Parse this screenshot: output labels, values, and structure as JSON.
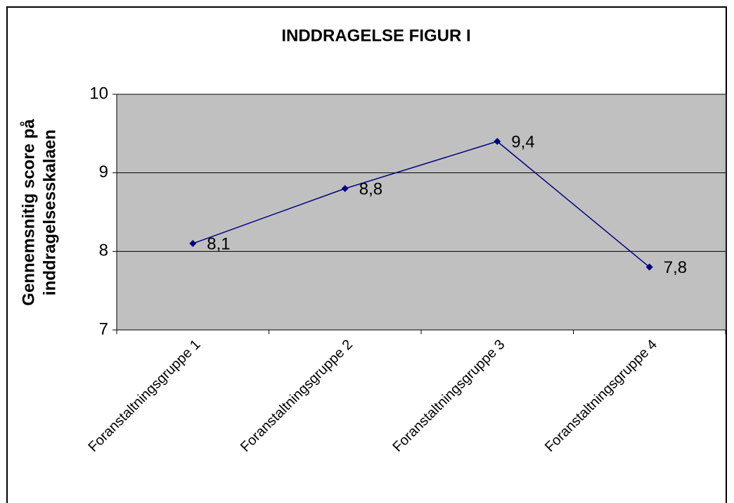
{
  "chart_data": {
    "type": "line",
    "title": "INDDRAGELSE FIGUR I",
    "ylabel": [
      "Gennemsnitig score på",
      "inddragelsesskalaen"
    ],
    "categories": [
      "Foranstaltningsgruppe 1",
      "Foranstaltningsgruppe 2",
      "Foranstaltningsgruppe 3",
      "Foranstaltningsgruppe 4"
    ],
    "series": [
      {
        "color": "#000080",
        "values": [
          8.1,
          8.8,
          9.4,
          7.8
        ],
        "value_labels": [
          "8,1",
          "8,8",
          "9,4",
          "7,8"
        ]
      }
    ],
    "ylim": [
      7,
      10
    ],
    "yticks": [
      7,
      8,
      9,
      10
    ],
    "grid": true
  }
}
